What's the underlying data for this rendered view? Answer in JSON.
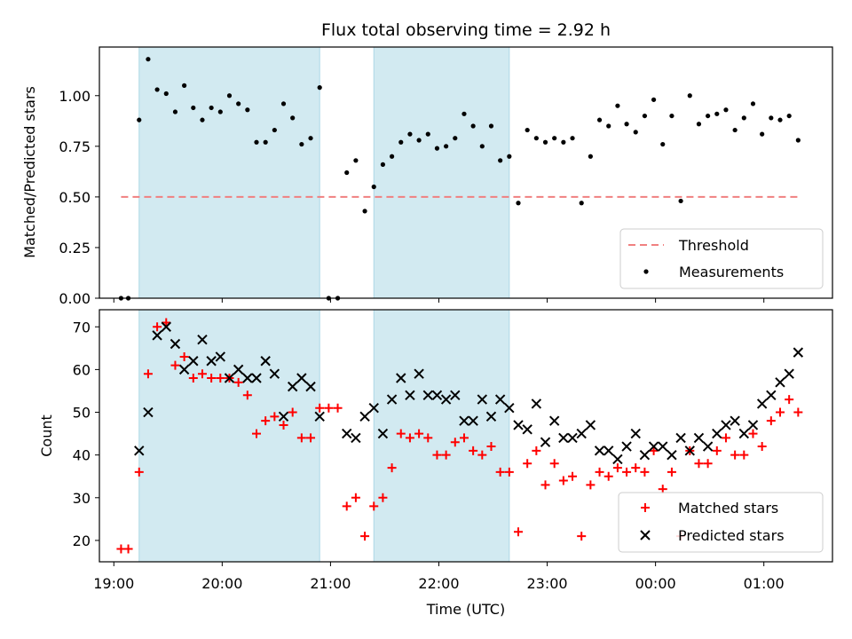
{
  "chart_data": [
    {
      "type": "scatter",
      "title": "Flux total observing time = 2.92 h",
      "xlabel": "",
      "ylabel": "Matched/Predicted stars",
      "ylim": [
        0,
        1.24
      ],
      "yticks": [
        "0.00",
        "0.25",
        "0.50",
        "0.75",
        "1.00"
      ],
      "xlim": [
        "18:52",
        "01:38"
      ],
      "xtick_labels_hidden": true,
      "legend_position": "lower-right",
      "shaded_intervals": [
        [
          "19:14",
          "20:54"
        ],
        [
          "21:24",
          "22:39"
        ]
      ],
      "series": [
        {
          "name": "Threshold",
          "style": "dashed-line",
          "color": "#f08080",
          "x": [
            "19:04",
            "01:20"
          ],
          "y": [
            0.5,
            0.5
          ]
        },
        {
          "name": "Measurements",
          "style": "dot",
          "color": "#000000",
          "points": [
            [
              "19:04",
              0.0
            ],
            [
              "19:08",
              0.0
            ],
            [
              "19:14",
              0.88
            ],
            [
              "19:19",
              1.18
            ],
            [
              "19:24",
              1.03
            ],
            [
              "19:29",
              1.01
            ],
            [
              "19:34",
              0.92
            ],
            [
              "19:39",
              1.05
            ],
            [
              "19:44",
              0.94
            ],
            [
              "19:49",
              0.88
            ],
            [
              "19:54",
              0.94
            ],
            [
              "19:59",
              0.92
            ],
            [
              "20:04",
              1.0
            ],
            [
              "20:09",
              0.96
            ],
            [
              "20:14",
              0.93
            ],
            [
              "20:19",
              0.77
            ],
            [
              "20:24",
              0.77
            ],
            [
              "20:29",
              0.83
            ],
            [
              "20:34",
              0.96
            ],
            [
              "20:39",
              0.89
            ],
            [
              "20:44",
              0.76
            ],
            [
              "20:49",
              0.79
            ],
            [
              "20:54",
              1.04
            ],
            [
              "20:59",
              0.0
            ],
            [
              "21:04",
              0.0
            ],
            [
              "21:09",
              0.62
            ],
            [
              "21:14",
              0.68
            ],
            [
              "21:19",
              0.43
            ],
            [
              "21:24",
              0.55
            ],
            [
              "21:29",
              0.66
            ],
            [
              "21:34",
              0.7
            ],
            [
              "21:39",
              0.77
            ],
            [
              "21:44",
              0.81
            ],
            [
              "21:49",
              0.78
            ],
            [
              "21:54",
              0.81
            ],
            [
              "21:59",
              0.74
            ],
            [
              "22:04",
              0.75
            ],
            [
              "22:09",
              0.79
            ],
            [
              "22:14",
              0.91
            ],
            [
              "22:19",
              0.85
            ],
            [
              "22:24",
              0.75
            ],
            [
              "22:29",
              0.85
            ],
            [
              "22:34",
              0.68
            ],
            [
              "22:39",
              0.7
            ],
            [
              "22:44",
              0.47
            ],
            [
              "22:49",
              0.83
            ],
            [
              "22:54",
              0.79
            ],
            [
              "22:59",
              0.77
            ],
            [
              "23:04",
              0.79
            ],
            [
              "23:09",
              0.77
            ],
            [
              "23:14",
              0.79
            ],
            [
              "23:19",
              0.47
            ],
            [
              "23:24",
              0.7
            ],
            [
              "23:29",
              0.88
            ],
            [
              "23:34",
              0.85
            ],
            [
              "23:39",
              0.95
            ],
            [
              "23:44",
              0.86
            ],
            [
              "23:49",
              0.82
            ],
            [
              "23:54",
              0.9
            ],
            [
              "23:59",
              0.98
            ],
            [
              "00:04",
              0.76
            ],
            [
              "00:09",
              0.9
            ],
            [
              "00:14",
              0.48
            ],
            [
              "00:19",
              1.0
            ],
            [
              "00:24",
              0.86
            ],
            [
              "00:29",
              0.9
            ],
            [
              "00:34",
              0.91
            ],
            [
              "00:39",
              0.93
            ],
            [
              "00:44",
              0.83
            ],
            [
              "00:49",
              0.89
            ],
            [
              "00:54",
              0.96
            ],
            [
              "00:59",
              0.81
            ],
            [
              "01:04",
              0.89
            ],
            [
              "01:09",
              0.88
            ],
            [
              "01:14",
              0.9
            ],
            [
              "01:19",
              0.78
            ]
          ]
        }
      ]
    },
    {
      "type": "scatter",
      "title": "",
      "xlabel": "Time (UTC)",
      "ylabel": "Count",
      "ylim": [
        15,
        74
      ],
      "yticks": [
        "20",
        "30",
        "40",
        "50",
        "60",
        "70"
      ],
      "xlim": [
        "18:52",
        "01:38"
      ],
      "xticks": [
        "19:00",
        "20:00",
        "21:00",
        "22:00",
        "23:00",
        "00:00",
        "01:00"
      ],
      "legend_position": "lower-right",
      "shaded_intervals": [
        [
          "19:14",
          "20:54"
        ],
        [
          "21:24",
          "22:39"
        ]
      ],
      "series": [
        {
          "name": "Matched stars",
          "marker": "+",
          "color": "#ff0000",
          "points": [
            [
              "19:04",
              18
            ],
            [
              "19:08",
              18
            ],
            [
              "19:14",
              36
            ],
            [
              "19:19",
              59
            ],
            [
              "19:24",
              70
            ],
            [
              "19:29",
              71
            ],
            [
              "19:34",
              61
            ],
            [
              "19:39",
              63
            ],
            [
              "19:44",
              58
            ],
            [
              "19:49",
              59
            ],
            [
              "19:54",
              58
            ],
            [
              "19:59",
              58
            ],
            [
              "20:04",
              58
            ],
            [
              "20:09",
              57
            ],
            [
              "20:14",
              54
            ],
            [
              "20:19",
              45
            ],
            [
              "20:24",
              48
            ],
            [
              "20:29",
              49
            ],
            [
              "20:34",
              47
            ],
            [
              "20:39",
              50
            ],
            [
              "20:44",
              44
            ],
            [
              "20:49",
              44
            ],
            [
              "20:54",
              51
            ],
            [
              "20:59",
              51
            ],
            [
              "21:04",
              51
            ],
            [
              "21:09",
              28
            ],
            [
              "21:14",
              30
            ],
            [
              "21:19",
              21
            ],
            [
              "21:24",
              28
            ],
            [
              "21:29",
              30
            ],
            [
              "21:34",
              37
            ],
            [
              "21:39",
              45
            ],
            [
              "21:44",
              44
            ],
            [
              "21:49",
              45
            ],
            [
              "21:54",
              44
            ],
            [
              "21:59",
              40
            ],
            [
              "22:04",
              40
            ],
            [
              "22:09",
              43
            ],
            [
              "22:14",
              44
            ],
            [
              "22:19",
              41
            ],
            [
              "22:24",
              40
            ],
            [
              "22:29",
              42
            ],
            [
              "22:34",
              36
            ],
            [
              "22:39",
              36
            ],
            [
              "22:44",
              22
            ],
            [
              "22:49",
              38
            ],
            [
              "22:54",
              41
            ],
            [
              "22:59",
              33
            ],
            [
              "23:04",
              38
            ],
            [
              "23:09",
              34
            ],
            [
              "23:14",
              35
            ],
            [
              "23:19",
              21
            ],
            [
              "23:24",
              33
            ],
            [
              "23:29",
              36
            ],
            [
              "23:34",
              35
            ],
            [
              "23:39",
              37
            ],
            [
              "23:44",
              36
            ],
            [
              "23:49",
              37
            ],
            [
              "23:54",
              36
            ],
            [
              "23:59",
              41
            ],
            [
              "00:04",
              32
            ],
            [
              "00:09",
              36
            ],
            [
              "00:14",
              21
            ],
            [
              "00:19",
              41
            ],
            [
              "00:24",
              38
            ],
            [
              "00:29",
              38
            ],
            [
              "00:34",
              41
            ],
            [
              "00:39",
              44
            ],
            [
              "00:44",
              40
            ],
            [
              "00:49",
              40
            ],
            [
              "00:54",
              45
            ],
            [
              "00:59",
              42
            ],
            [
              "01:04",
              48
            ],
            [
              "01:09",
              50
            ],
            [
              "01:14",
              53
            ],
            [
              "01:19",
              50
            ]
          ]
        },
        {
          "name": "Predicted stars",
          "marker": "x",
          "color": "#000000",
          "points": [
            [
              "19:14",
              41
            ],
            [
              "19:19",
              50
            ],
            [
              "19:24",
              68
            ],
            [
              "19:29",
              70
            ],
            [
              "19:34",
              66
            ],
            [
              "19:39",
              60
            ],
            [
              "19:44",
              62
            ],
            [
              "19:49",
              67
            ],
            [
              "19:54",
              62
            ],
            [
              "19:59",
              63
            ],
            [
              "20:04",
              58
            ],
            [
              "20:09",
              60
            ],
            [
              "20:14",
              58
            ],
            [
              "20:19",
              58
            ],
            [
              "20:24",
              62
            ],
            [
              "20:29",
              59
            ],
            [
              "20:34",
              49
            ],
            [
              "20:39",
              56
            ],
            [
              "20:44",
              58
            ],
            [
              "20:49",
              56
            ],
            [
              "20:54",
              49
            ],
            [
              "21:09",
              45
            ],
            [
              "21:14",
              44
            ],
            [
              "21:19",
              49
            ],
            [
              "21:24",
              51
            ],
            [
              "21:29",
              45
            ],
            [
              "21:34",
              53
            ],
            [
              "21:39",
              58
            ],
            [
              "21:44",
              54
            ],
            [
              "21:49",
              59
            ],
            [
              "21:54",
              54
            ],
            [
              "21:59",
              54
            ],
            [
              "22:04",
              53
            ],
            [
              "22:09",
              54
            ],
            [
              "22:14",
              48
            ],
            [
              "22:19",
              48
            ],
            [
              "22:24",
              53
            ],
            [
              "22:29",
              49
            ],
            [
              "22:34",
              53
            ],
            [
              "22:39",
              51
            ],
            [
              "22:44",
              47
            ],
            [
              "22:49",
              46
            ],
            [
              "22:54",
              52
            ],
            [
              "22:59",
              43
            ],
            [
              "23:04",
              48
            ],
            [
              "23:09",
              44
            ],
            [
              "23:14",
              44
            ],
            [
              "23:19",
              45
            ],
            [
              "23:24",
              47
            ],
            [
              "23:29",
              41
            ],
            [
              "23:34",
              41
            ],
            [
              "23:39",
              39
            ],
            [
              "23:44",
              42
            ],
            [
              "23:49",
              45
            ],
            [
              "23:54",
              40
            ],
            [
              "23:59",
              42
            ],
            [
              "00:04",
              42
            ],
            [
              "00:09",
              40
            ],
            [
              "00:14",
              44
            ],
            [
              "00:19",
              41
            ],
            [
              "00:24",
              44
            ],
            [
              "00:29",
              42
            ],
            [
              "00:34",
              45
            ],
            [
              "00:39",
              47
            ],
            [
              "00:44",
              48
            ],
            [
              "00:49",
              45
            ],
            [
              "00:54",
              47
            ],
            [
              "00:59",
              52
            ],
            [
              "01:04",
              54
            ],
            [
              "01:09",
              57
            ],
            [
              "01:14",
              59
            ],
            [
              "01:19",
              64
            ]
          ]
        }
      ]
    }
  ],
  "colors": {
    "shade": "#add8e6",
    "threshold": "#f08080",
    "matched": "#ff0000",
    "predicted": "#000000",
    "measurement": "#000000"
  }
}
